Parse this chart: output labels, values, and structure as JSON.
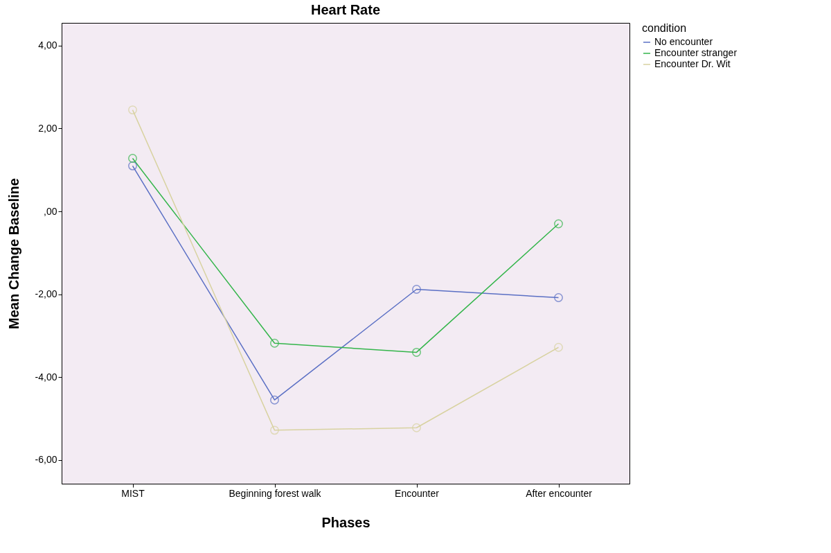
{
  "chart_data": {
    "type": "line",
    "title": "Heart Rate",
    "xlabel": "Phases",
    "ylabel": "Mean Change Baseline",
    "legend_title": "condition",
    "categories": [
      "MIST",
      "Beginning forest walk",
      "Encounter",
      "After encounter"
    ],
    "series": [
      {
        "name": "No encounter",
        "color": "#5a6fc4",
        "values": [
          1.1,
          -4.55,
          -1.88,
          -2.08
        ]
      },
      {
        "name": "Encounter stranger",
        "color": "#33b54a",
        "values": [
          1.28,
          -3.18,
          -3.4,
          -0.3
        ]
      },
      {
        "name": "Encounter Dr. Wit",
        "color": "#d8d2a0",
        "values": [
          2.45,
          -5.28,
          -5.22,
          -3.28
        ]
      }
    ],
    "ylim": [
      -6.57,
      4.55
    ],
    "yticks": [
      {
        "value": -6,
        "label": "-6,00"
      },
      {
        "value": -4,
        "label": "-4,00"
      },
      {
        "value": -2,
        "label": "-2,00"
      },
      {
        "value": 0,
        "label": ",00"
      },
      {
        "value": 2,
        "label": "2,00"
      },
      {
        "value": 4,
        "label": "4,00"
      }
    ],
    "grid": false,
    "legend": "top right",
    "marker": "circle",
    "line_style": "solid"
  }
}
